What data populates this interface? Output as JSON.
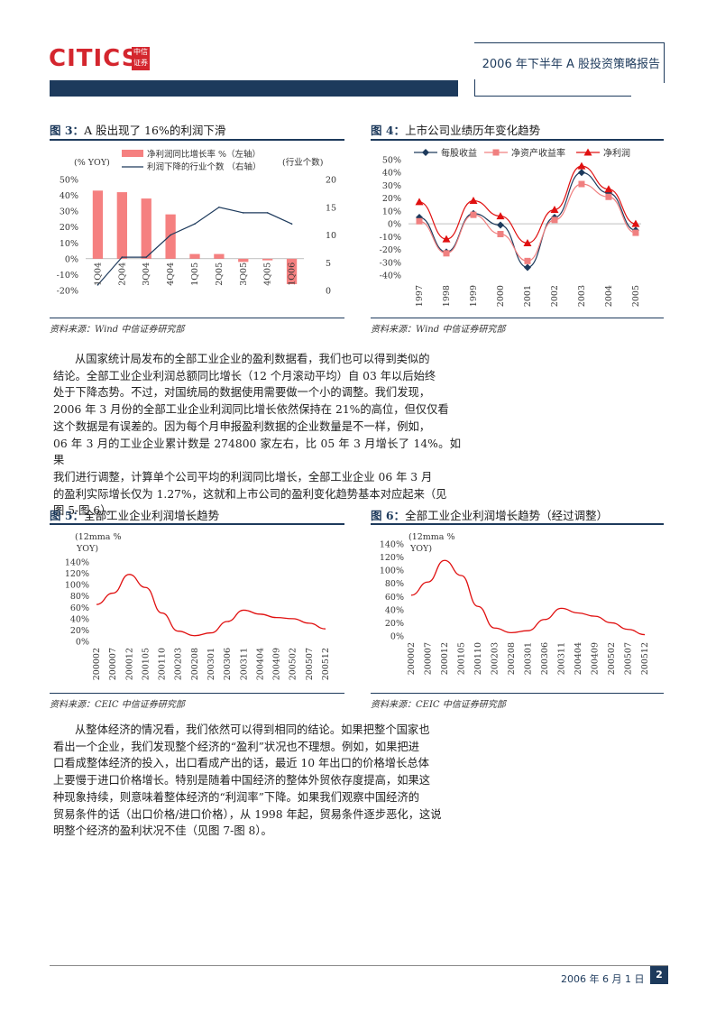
{
  "header": {
    "logo_text": "CITICS",
    "logo_cn_top": "中信",
    "logo_cn_bottom": "证券",
    "report_title": "2006 年下半年 A 股投资策略报告"
  },
  "figures": [
    {
      "label": "图 3：",
      "title": "A 股出现了 16%的利润下滑",
      "source": "资料来源：Wind    中信证券研究部",
      "chart_data": {
        "type": "bar",
        "categories": [
          "1Q04",
          "2Q04",
          "3Q04",
          "4Q04",
          "1Q05",
          "2Q05",
          "3Q05",
          "4Q05",
          "1Q06"
        ],
        "series": [
          {
            "name": "净利润同比增长率 %（左轴）",
            "type": "bar",
            "values": [
              43,
              42,
              38,
              28,
              3,
              3,
              -2,
              -1,
              -16
            ]
          },
          {
            "name": "利润下降的行业个数 （右轴）",
            "type": "line",
            "values": [
              1,
              6,
              6,
              10,
              12,
              15,
              14,
              14,
              12
            ]
          }
        ],
        "left_unit": "(% YOY)",
        "right_unit": "(行业个数)",
        "ylim": [
          -20,
          50
        ],
        "ticks_left": [
          "50%",
          "40%",
          "30%",
          "20%",
          "10%",
          "0%",
          "-10%",
          "-20%"
        ],
        "y2lim": [
          0,
          20
        ],
        "ticks_right": [
          "20",
          "15",
          "10",
          "5",
          "0"
        ],
        "colors": {
          "bar": "#f58080",
          "line": "#1d3a5c"
        }
      }
    },
    {
      "label": "图 4：",
      "title": "上市公司业绩历年变化趋势",
      "source": "资料来源：Wind    中信证券研究部",
      "chart_data": {
        "type": "line",
        "x": [
          "1997",
          "1998",
          "1999",
          "2000",
          "2001",
          "2002",
          "2003",
          "2004",
          "2005"
        ],
        "series": [
          {
            "name": "每股收益",
            "values": [
              5,
              -22,
              8,
              -1,
              -34,
              5,
              40,
              24,
              -5
            ],
            "color": "#1d3a5c",
            "marker": "diamond"
          },
          {
            "name": "净资产收益率",
            "values": [
              2,
              -23,
              7,
              -8,
              -29,
              3,
              31,
              21,
              -7
            ],
            "color": "#f08080",
            "marker": "square"
          },
          {
            "name": "净利润",
            "values": [
              17,
              -12,
              18,
              6,
              -15,
              11,
              45,
              27,
              0
            ],
            "color": "#e01010",
            "marker": "triangle"
          }
        ],
        "ylim": [
          -40,
          50
        ],
        "ticks": [
          "50%",
          "40%",
          "30%",
          "20%",
          "10%",
          "0%",
          "-10%",
          "-20%",
          "-30%",
          "-40%"
        ]
      }
    },
    {
      "label": "图 5：",
      "title": "全部工业企业利润增长趋势",
      "source": "资料来源：CEIC    中信证券研究部",
      "chart_data": {
        "type": "line",
        "unit_label_1": "(12mma %",
        "unit_label_2": "YOY)",
        "x": [
          "200002",
          "200007",
          "200012",
          "200105",
          "200110",
          "200203",
          "200208",
          "200301",
          "200306",
          "200311",
          "200404",
          "200409",
          "200502",
          "200507",
          "200512"
        ],
        "series": [
          {
            "name": "",
            "values": [
              65,
              85,
              118,
              95,
              50,
              18,
              10,
              15,
              35,
              55,
              48,
              42,
              40,
              32,
              22
            ],
            "color": "#e01010"
          }
        ],
        "ylim": [
          0,
          140
        ],
        "ticks": [
          "140%",
          "120%",
          "100%",
          "80%",
          "60%",
          "40%",
          "20%",
          "0%"
        ]
      }
    },
    {
      "label": "图 6：",
      "title": "全部工业企业利润增长趋势（经过调整）",
      "source": "资料来源：CEIC    中信证券研究部",
      "chart_data": {
        "type": "line",
        "unit_label_1": "(12mma %",
        "unit_label_2": "YOY)",
        "x": [
          "200002",
          "200007",
          "200012",
          "200105",
          "200110",
          "200203",
          "200208",
          "200301",
          "200306",
          "200311",
          "200404",
          "200409",
          "200502",
          "200507",
          "200512"
        ],
        "series": [
          {
            "name": "",
            "values": [
              62,
              82,
              115,
              92,
              45,
              12,
              5,
              8,
              25,
              42,
              35,
              30,
              20,
              10,
              2
            ],
            "color": "#e01010"
          }
        ],
        "ylim": [
          0,
          140
        ],
        "ticks": [
          "140%",
          "120%",
          "100%",
          "80%",
          "60%",
          "40%",
          "20%",
          "0%"
        ]
      }
    }
  ],
  "paragraph1": [
    "从国家统计局发布的全部工业企业的盈利数据看，我们也可以得到类似的",
    "结论。全部工业企业利润总额同比增长（12 个月滚动平均）自 03 年以后始终",
    "处于下降态势。不过，对国统局的数据使用需要做一个小的调整。我们发现，",
    "2006 年 3 月份的全部工业企业利润同比增长依然保持在 21%的高位，但仅仅看",
    "这个数据是有误差的。因为每个月申报盈利数据的企业数量是不一样，例如，",
    "06 年 3 月的工业企业累计数是 274800 家左右，比 05 年 3 月增长了 14%。如果",
    "我们进行调整，计算单个公司平均的利润同比增长，全部工业企业 06 年 3 月",
    "的盈利实际增长仅为 1.27%，这就和上市公司的盈利变化趋势基本对应起来（见",
    "图 5-图 6）。"
  ],
  "paragraph2": [
    "从整体经济的情况看，我们依然可以得到相同的结论。如果把整个国家也",
    "看出一个企业，我们发现整个经济的“盈利”状况也不理想。例如，如果把进",
    "口看成整体经济的投入，出口看成产出的话，最近 10 年出口的价格增长总体",
    "上要慢于进口价格增长。特别是随着中国经济的整体外贸依存度提高，如果这",
    "种现象持续，则意味着整体经济的“利润率”下降。如果我们观察中国经济的",
    "贸易条件的话（出口价格/进口价格），从 1998 年起，贸易条件逐步恶化，这说",
    "明整个经济的盈利状况不佳（见图 7-图 8）。"
  ],
  "footer": {
    "date": "2006 年 6 月 1 日",
    "page": "2"
  }
}
